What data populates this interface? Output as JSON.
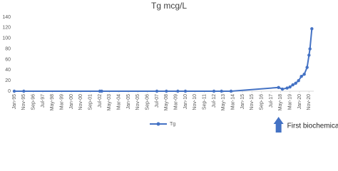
{
  "chart_data": {
    "type": "line",
    "title": "Tg mcg/L",
    "x": [
      "1995-01",
      "1995-11",
      "2002-07",
      "2002-09",
      "2007-07",
      "2008-05",
      "2009-05",
      "2010-01",
      "2012-07",
      "2013-03",
      "2014-01",
      "2018-03",
      "2018-07",
      "2018-12",
      "2019-03",
      "2019-06",
      "2019-09",
      "2019-12",
      "2020-03",
      "2020-06",
      "2020-09",
      "2020-11",
      "2020-12",
      "2021-02"
    ],
    "series": [
      {
        "name": "Tg",
        "color": "#4472c4",
        "values": [
          0,
          0,
          0,
          0,
          0,
          0,
          0,
          0,
          0,
          0,
          0,
          7,
          4,
          6,
          8,
          12,
          15,
          20,
          28,
          32,
          45,
          68,
          80,
          118
        ]
      }
    ],
    "xlim": [
      "1995-01",
      "2021-04"
    ],
    "xticks": [
      {
        "value": "1995-01",
        "label": "Jan-95"
      },
      {
        "value": "1995-11",
        "label": "Nov-95"
      },
      {
        "value": "1996-09",
        "label": "Sep-96"
      },
      {
        "value": "1997-07",
        "label": "Jul-97"
      },
      {
        "value": "1998-05",
        "label": "May-98"
      },
      {
        "value": "1999-03",
        "label": "Mar-99"
      },
      {
        "value": "2000-01",
        "label": "Jan-00"
      },
      {
        "value": "2000-11",
        "label": "Nov-00"
      },
      {
        "value": "2001-09",
        "label": "Sep-01"
      },
      {
        "value": "2002-07",
        "label": "Jul-02"
      },
      {
        "value": "2003-05",
        "label": "May-03"
      },
      {
        "value": "2004-03",
        "label": "Mar-04"
      },
      {
        "value": "2005-01",
        "label": "Jan-05"
      },
      {
        "value": "2005-11",
        "label": "Nov-05"
      },
      {
        "value": "2006-09",
        "label": "Sep-06"
      },
      {
        "value": "2007-07",
        "label": "Jul-07"
      },
      {
        "value": "2008-05",
        "label": "May-08"
      },
      {
        "value": "2009-03",
        "label": "Mar-09"
      },
      {
        "value": "2010-01",
        "label": "Jan-10"
      },
      {
        "value": "2010-11",
        "label": "Nov-10"
      },
      {
        "value": "2011-09",
        "label": "Sep-11"
      },
      {
        "value": "2012-07",
        "label": "Jul-12"
      },
      {
        "value": "2013-05",
        "label": "May-13"
      },
      {
        "value": "2014-03",
        "label": "Mar-14"
      },
      {
        "value": "2015-01",
        "label": "Jan-15"
      },
      {
        "value": "2015-11",
        "label": "Nov-15"
      },
      {
        "value": "2016-09",
        "label": "Sep-16"
      },
      {
        "value": "2017-07",
        "label": "Jul-17"
      },
      {
        "value": "2018-05",
        "label": "May-18"
      },
      {
        "value": "2019-03",
        "label": "Mar-19"
      },
      {
        "value": "2020-01",
        "label": "Jan-20"
      },
      {
        "value": "2020-11",
        "label": "Nov-20"
      }
    ],
    "ylim": [
      0,
      140
    ],
    "yticks": [
      0,
      20,
      40,
      60,
      80,
      100,
      120,
      140
    ],
    "annotation": {
      "text": "First biochemical recurrence",
      "x": "2018-03"
    },
    "legend": "bottom"
  }
}
